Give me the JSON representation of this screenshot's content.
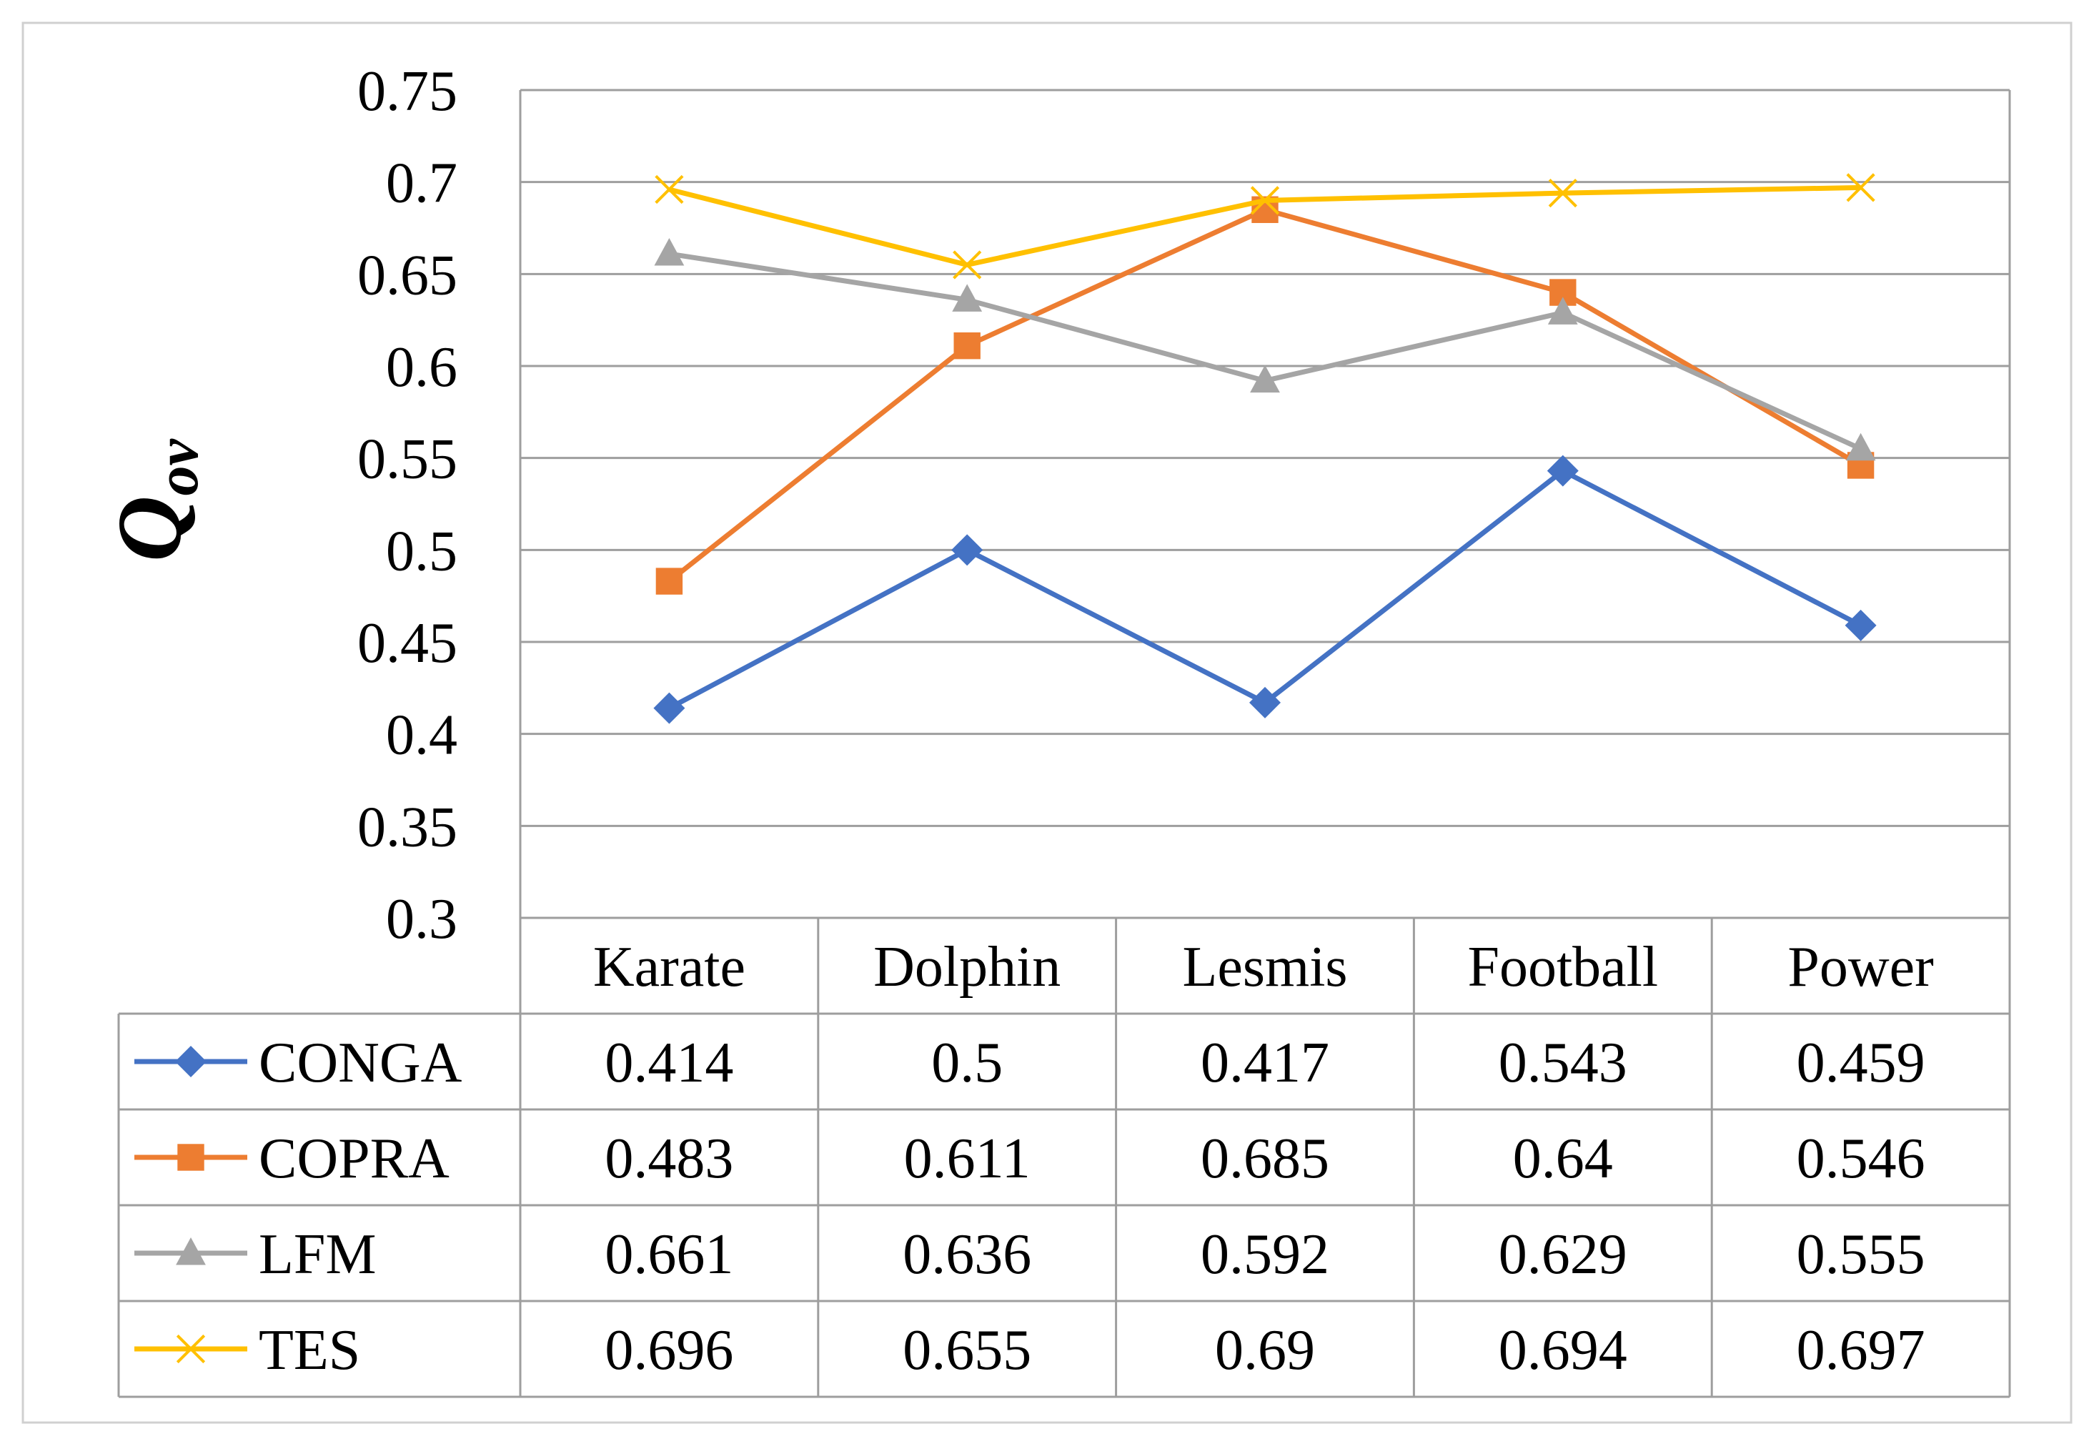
{
  "chart_data": {
    "type": "line",
    "title": "",
    "xlabel": "",
    "ylabel": "Q",
    "ylabel_subscript": "ov",
    "ylim": [
      0.3,
      0.75
    ],
    "yticks": [
      "0.75",
      "0.7",
      "0.65",
      "0.6",
      "0.55",
      "0.5",
      "0.45",
      "0.4",
      "0.35",
      "0.3"
    ],
    "grid": true,
    "legend": "data-table-rows",
    "categories": [
      "Karate",
      "Dolphin",
      "Lesmis",
      "Football",
      "Power"
    ],
    "series": [
      {
        "name": "CONGA",
        "color": "#4472C4",
        "marker": "diamond",
        "values": [
          0.414,
          0.5,
          0.417,
          0.543,
          0.459
        ],
        "labels": [
          "0.414",
          "0.5",
          "0.417",
          "0.543",
          "0.459"
        ]
      },
      {
        "name": "COPRA",
        "color": "#ED7D31",
        "marker": "square",
        "values": [
          0.483,
          0.611,
          0.685,
          0.64,
          0.546
        ],
        "labels": [
          "0.483",
          "0.611",
          "0.685",
          "0.64",
          "0.546"
        ]
      },
      {
        "name": "LFM",
        "color": "#A5A5A5",
        "marker": "triangle",
        "values": [
          0.661,
          0.636,
          0.592,
          0.629,
          0.555
        ],
        "labels": [
          "0.661",
          "0.636",
          "0.592",
          "0.629",
          "0.555"
        ]
      },
      {
        "name": "TES",
        "color": "#FFC000",
        "marker": "x",
        "values": [
          0.696,
          0.655,
          0.69,
          0.694,
          0.697
        ],
        "labels": [
          "0.696",
          "0.655",
          "0.69",
          "0.694",
          "0.697"
        ]
      }
    ]
  }
}
